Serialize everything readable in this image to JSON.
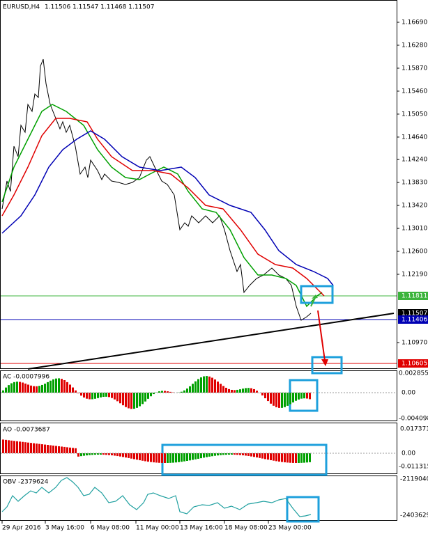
{
  "header": {
    "symbol": "EURUSD,H4",
    "quote": "1.11506 1.11547 1.11468 1.11507"
  },
  "price_axis": [
    "1.16690",
    "1.16280",
    "1.15870",
    "1.15460",
    "1.15050",
    "1.14640",
    "1.14240",
    "1.13830",
    "1.13420",
    "1.13010",
    "1.12600",
    "1.12190",
    "1.10970"
  ],
  "price_markers": {
    "green": "1.11811",
    "current": "1.11507",
    "blue": "1.11406",
    "red": "1.10605"
  },
  "ac": {
    "label": "AC -0.0007996",
    "axis": [
      "0.002855",
      "0.00",
      "-0.004098"
    ]
  },
  "ao": {
    "label": "AO -0.0073687",
    "axis": [
      "0.017371",
      "0.00",
      "-0.011315"
    ]
  },
  "obv": {
    "label": "OBV -2379624",
    "axis": [
      "-2119040",
      "-2403629"
    ]
  },
  "time_axis": [
    "29 Apr 2016",
    "3 May 16:00",
    "6 May 08:00",
    "11 May 00:00",
    "13 May 16:00",
    "18 May 08:00",
    "23 May 00:00"
  ]
}
